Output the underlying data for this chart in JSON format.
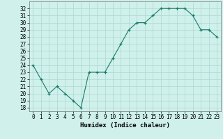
{
  "title": "",
  "xlabel": "Humidex (Indice chaleur)",
  "x": [
    0,
    1,
    2,
    3,
    4,
    5,
    6,
    7,
    8,
    9,
    10,
    11,
    12,
    13,
    14,
    15,
    16,
    17,
    18,
    19,
    20,
    21,
    22,
    23
  ],
  "y": [
    24,
    22,
    20,
    21,
    20,
    19,
    18,
    23,
    23,
    23,
    25,
    27,
    29,
    30,
    30,
    31,
    32,
    32,
    32,
    32,
    31,
    29,
    29,
    28
  ],
  "line_color": "#1a7a6a",
  "marker_color": "#1a7a6a",
  "bg_color": "#cff0eb",
  "grid_color": "#aad8d0",
  "ylim": [
    17.5,
    33.0
  ],
  "yticks": [
    18,
    19,
    20,
    21,
    22,
    23,
    24,
    25,
    26,
    27,
    28,
    29,
    30,
    31,
    32
  ],
  "xlim": [
    -0.5,
    23.5
  ],
  "xticks": [
    0,
    1,
    2,
    3,
    4,
    5,
    6,
    7,
    8,
    9,
    10,
    11,
    12,
    13,
    14,
    15,
    16,
    17,
    18,
    19,
    20,
    21,
    22,
    23
  ],
  "label_fontsize": 6.5,
  "tick_fontsize": 5.5
}
